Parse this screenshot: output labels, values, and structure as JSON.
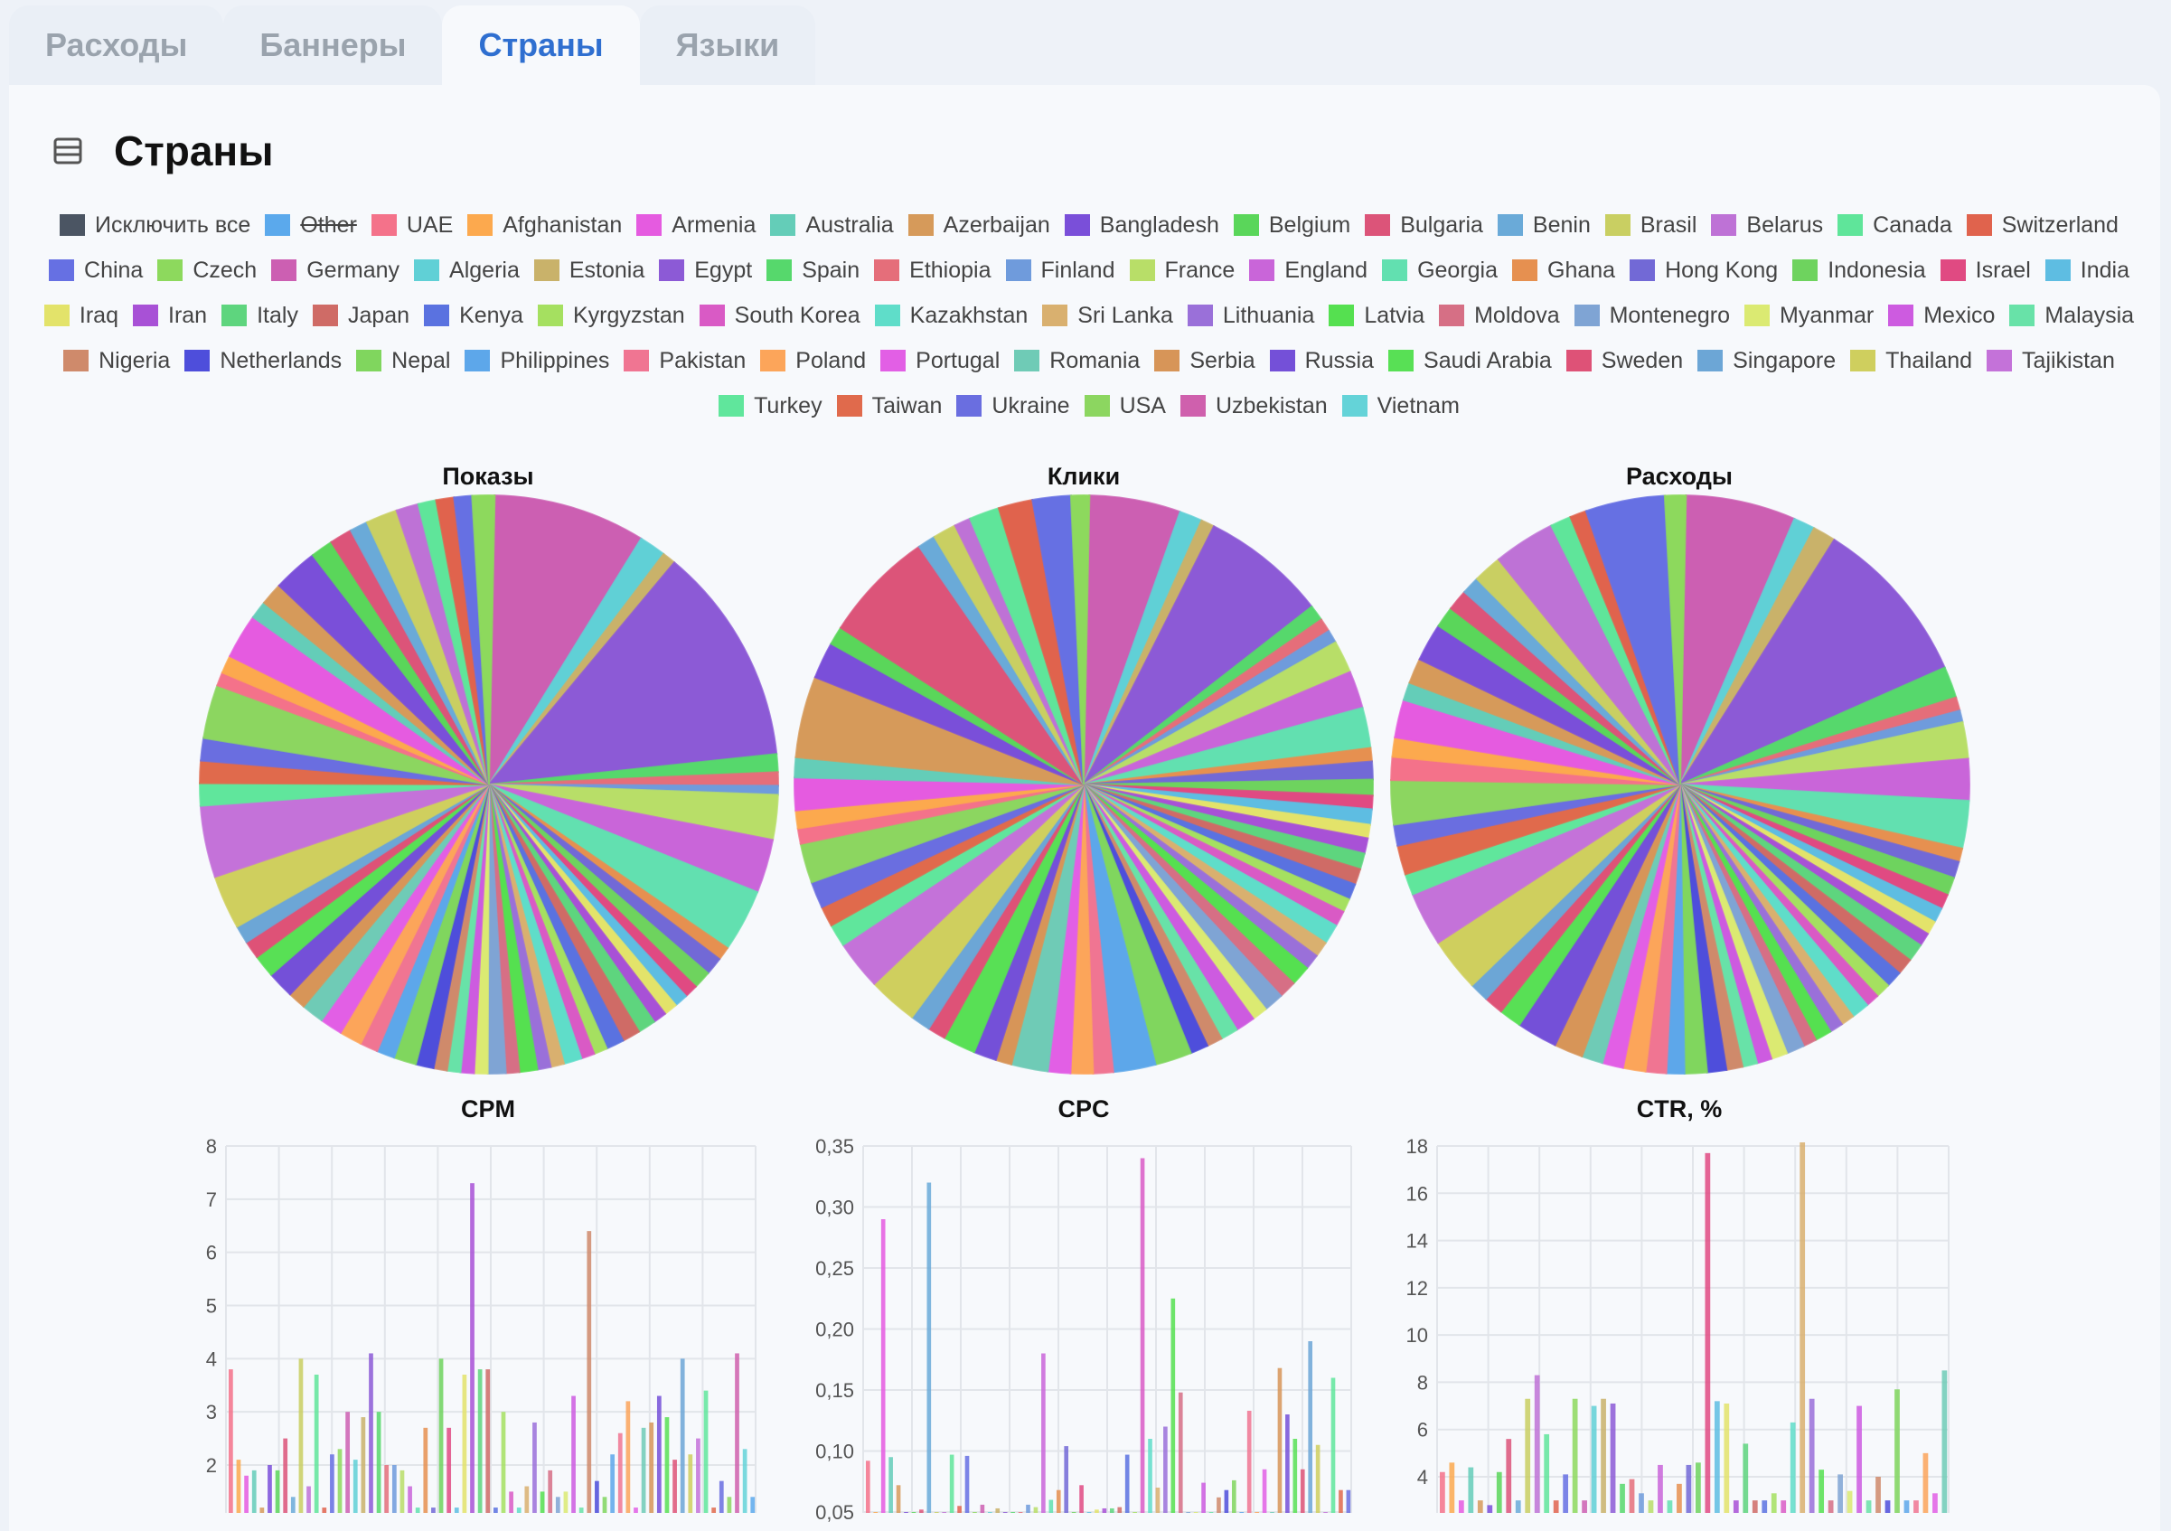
{
  "tabs": [
    {
      "label": "Расходы",
      "active": false
    },
    {
      "label": "Баннеры",
      "active": false
    },
    {
      "label": "Страны",
      "active": true
    },
    {
      "label": "Языки",
      "active": false
    }
  ],
  "page_title": "Страны",
  "icons": {
    "table": "table-list-icon"
  },
  "legend": {
    "exclude_all_label": "Исключить все",
    "exclude_all_color": "#4b5563",
    "items": [
      {
        "label": "Other",
        "color": "#5ba9ec",
        "hidden": true
      },
      {
        "label": "UAE",
        "color": "#f4728a"
      },
      {
        "label": "Afghanistan",
        "color": "#fca94e"
      },
      {
        "label": "Armenia",
        "color": "#e55be0"
      },
      {
        "label": "Australia",
        "color": "#64cdb8"
      },
      {
        "label": "Azerbaijan",
        "color": "#d69a5a"
      },
      {
        "label": "Bangladesh",
        "color": "#7a4fd9"
      },
      {
        "label": "Belgium",
        "color": "#5ad65a"
      },
      {
        "label": "Bulgaria",
        "color": "#dc5479"
      },
      {
        "label": "Benin",
        "color": "#6aaad8"
      },
      {
        "label": "Brasil",
        "color": "#c9cf62"
      },
      {
        "label": "Belarus",
        "color": "#be72d6"
      },
      {
        "label": "Canada",
        "color": "#5fe59a"
      },
      {
        "label": "Switzerland",
        "color": "#e0634d"
      },
      {
        "label": "China",
        "color": "#6670e3"
      },
      {
        "label": "Czech",
        "color": "#8dd95d"
      },
      {
        "label": "Germany",
        "color": "#cc5fb2"
      },
      {
        "label": "Algeria",
        "color": "#60d0d6"
      },
      {
        "label": "Estonia",
        "color": "#c9b26a"
      },
      {
        "label": "Egypt",
        "color": "#8c5ad6"
      },
      {
        "label": "Spain",
        "color": "#56d86c"
      },
      {
        "label": "Ethiopia",
        "color": "#e56e7a"
      },
      {
        "label": "Finland",
        "color": "#6f9bdc"
      },
      {
        "label": "France",
        "color": "#b8de68"
      },
      {
        "label": "England",
        "color": "#c965d9"
      },
      {
        "label": "Georgia",
        "color": "#62e0b0"
      },
      {
        "label": "Ghana",
        "color": "#e69050"
      },
      {
        "label": "Hong Kong",
        "color": "#7269d6"
      },
      {
        "label": "Indonesia",
        "color": "#6ed35e"
      },
      {
        "label": "Israel",
        "color": "#e04a82"
      },
      {
        "label": "India",
        "color": "#5ebde2"
      },
      {
        "label": "Iraq",
        "color": "#e3e36a"
      },
      {
        "label": "Iran",
        "color": "#a851d6"
      },
      {
        "label": "Italy",
        "color": "#5ed57e"
      },
      {
        "label": "Japan",
        "color": "#cf6b66"
      },
      {
        "label": "Kenya",
        "color": "#5a72e0"
      },
      {
        "label": "Kyrgyzstan",
        "color": "#a5e060"
      },
      {
        "label": "South Korea",
        "color": "#d95ac5"
      },
      {
        "label": "Kazakhstan",
        "color": "#5fddc9"
      },
      {
        "label": "Sri Lanka",
        "color": "#d9b06f"
      },
      {
        "label": "Lithuania",
        "color": "#9a70d9"
      },
      {
        "label": "Latvia",
        "color": "#55e050"
      },
      {
        "label": "Moldova",
        "color": "#d66f85"
      },
      {
        "label": "Montenegro",
        "color": "#7fa4d4"
      },
      {
        "label": "Myanmar",
        "color": "#dbea72"
      },
      {
        "label": "Mexico",
        "color": "#cd5be0"
      },
      {
        "label": "Malaysia",
        "color": "#68e2a8"
      },
      {
        "label": "Nigeria",
        "color": "#cf8a6b"
      },
      {
        "label": "Netherlands",
        "color": "#4e4edb"
      },
      {
        "label": "Nepal",
        "color": "#80d65e"
      },
      {
        "label": "Philippines",
        "color": "#5da7ea"
      },
      {
        "label": "Pakistan",
        "color": "#f07592"
      },
      {
        "label": "Poland",
        "color": "#fca55a"
      },
      {
        "label": "Portugal",
        "color": "#e25fe5"
      },
      {
        "label": "Romania",
        "color": "#6fcbb6"
      },
      {
        "label": "Serbia",
        "color": "#d79558"
      },
      {
        "label": "Russia",
        "color": "#7450d8"
      },
      {
        "label": "Saudi Arabia",
        "color": "#58e055"
      },
      {
        "label": "Sweden",
        "color": "#de5277"
      },
      {
        "label": "Singapore",
        "color": "#6ca6d6"
      },
      {
        "label": "Thailand",
        "color": "#cfcf5e"
      },
      {
        "label": "Tajikistan",
        "color": "#c472d9"
      },
      {
        "label": "Turkey",
        "color": "#60e69c"
      },
      {
        "label": "Taiwan",
        "color": "#e06a4c"
      },
      {
        "label": "Ukraine",
        "color": "#6a6ee0"
      },
      {
        "label": "USA",
        "color": "#8cd660"
      },
      {
        "label": "Uzbekistan",
        "color": "#cf60ad"
      },
      {
        "label": "Vietnam",
        "color": "#64d3d8"
      }
    ]
  },
  "chart_data": [
    {
      "type": "pie",
      "title": "Показы",
      "labels": [
        "Germany",
        "Algeria",
        "Estonia",
        "Egypt",
        "Spain",
        "Ethiopia",
        "Finland",
        "France",
        "England",
        "Georgia",
        "Ghana",
        "Hong Kong",
        "Indonesia",
        "Israel",
        "India",
        "Iraq",
        "Iran",
        "Italy",
        "Japan",
        "Kenya",
        "Kyrgyzstan",
        "South Korea",
        "Kazakhstan",
        "Sri Lanka",
        "Lithuania",
        "Latvia",
        "Moldova",
        "Montenegro",
        "Myanmar",
        "Mexico",
        "Malaysia",
        "Nigeria",
        "Netherlands",
        "Nepal",
        "Philippines",
        "Pakistan",
        "Poland",
        "Portugal",
        "Romania",
        "Serbia",
        "Russia",
        "Saudi Arabia",
        "Sweden",
        "Singapore",
        "Thailand",
        "Tajikistan",
        "Turkey",
        "Taiwan",
        "Ukraine",
        "USA",
        "UAE",
        "Afghanistan",
        "Armenia",
        "Australia",
        "Azerbaijan",
        "Bangladesh",
        "Belgium",
        "Bulgaria",
        "Benin",
        "Brasil",
        "Belarus",
        "Canada",
        "Switzerland",
        "China",
        "Czech"
      ],
      "values": [
        3.4,
        0.6,
        0.3,
        4.9,
        0.4,
        0.3,
        0.2,
        1.0,
        1.2,
        1.4,
        0.3,
        0.4,
        0.4,
        0.3,
        0.3,
        0.3,
        0.3,
        0.4,
        0.4,
        0.4,
        0.3,
        0.3,
        0.4,
        0.3,
        0.3,
        0.4,
        0.3,
        0.4,
        0.3,
        0.3,
        0.3,
        0.3,
        0.4,
        0.5,
        0.4,
        0.4,
        0.5,
        0.5,
        0.5,
        0.4,
        0.6,
        0.5,
        0.4,
        0.4,
        1.2,
        1.6,
        0.5,
        0.5,
        0.5,
        1.2,
        0.3,
        0.4,
        1.0,
        0.4,
        0.5,
        1.0,
        0.5,
        0.5,
        0.4,
        0.7,
        0.5,
        0.4,
        0.4,
        0.4,
        0.5
      ]
    },
    {
      "type": "pie",
      "title": "Клики",
      "labels": [],
      "values": []
    },
    {
      "type": "pie",
      "title": "Расходы",
      "labels": [],
      "values": []
    },
    {
      "type": "bar",
      "title": "CPM",
      "ylim": [
        0,
        8
      ],
      "yticks": [
        "8",
        "7",
        "6",
        "5",
        "4",
        "3",
        "2"
      ],
      "values": [
        3.8,
        2.1,
        1.8,
        1.9,
        1.2,
        2.0,
        1.9,
        2.5,
        1.4,
        4.0,
        1.6,
        3.7,
        1.2,
        2.2,
        2.3,
        3.0,
        2.1,
        2.9,
        4.1,
        3.0,
        2.0,
        2.0,
        1.9,
        1.6,
        1.2,
        2.7,
        1.2,
        4.0,
        2.7,
        1.2,
        3.7,
        7.3,
        3.8,
        3.8,
        1.2,
        3.0,
        1.5,
        1.2,
        1.6,
        2.8,
        1.5,
        1.9,
        1.4,
        1.5,
        3.3,
        1.2,
        6.4,
        1.7,
        1.4,
        2.2,
        2.6,
        3.2,
        1.2,
        2.7,
        2.8,
        3.3,
        2.9,
        2.1,
        4.0,
        2.2,
        2.5,
        3.4,
        1.2,
        1.7,
        1.4,
        4.1,
        2.3,
        1.4
      ]
    },
    {
      "type": "bar",
      "title": "CPC",
      "ylim": [
        0.05,
        0.35
      ],
      "yticks": [
        "0,35",
        "0,30",
        "0,25",
        "0,20",
        "0,15",
        "0,10",
        "0,05"
      ],
      "values": [
        0.092,
        0.05,
        0.29,
        0.095,
        0.072,
        0.05,
        0.05,
        0.052,
        0.32,
        0.05,
        0.05,
        0.097,
        0.055,
        0.096,
        0.05,
        0.056,
        0.05,
        0.053,
        0.05,
        0.05,
        0.05,
        0.056,
        0.054,
        0.18,
        0.06,
        0.068,
        0.104,
        0.05,
        0.072,
        0.05,
        0.052,
        0.053,
        0.053,
        0.054,
        0.097,
        0.05,
        0.34,
        0.11,
        0.07,
        0.12,
        0.225,
        0.148,
        0.05,
        0.05,
        0.074,
        0.05,
        0.062,
        0.068,
        0.076,
        0.05,
        0.133,
        0.05,
        0.085,
        0.05,
        0.168,
        0.13,
        0.11,
        0.085,
        0.19,
        0.105,
        0.05,
        0.16,
        0.068,
        0.068
      ]
    },
    {
      "type": "bar",
      "title": "CTR, %",
      "ylim": [
        3,
        18
      ],
      "yticks": [
        "18",
        "16",
        "14",
        "12",
        "10",
        "8",
        "6",
        "4"
      ],
      "values": [
        4.2,
        4.6,
        3.0,
        4.4,
        3.0,
        2.8,
        4.2,
        5.6,
        3.0,
        7.3,
        8.3,
        5.8,
        3.0,
        4.1,
        7.3,
        3.0,
        7.0,
        7.3,
        7.1,
        3.7,
        3.9,
        3.3,
        3.0,
        4.5,
        3.0,
        3.7,
        4.5,
        4.6,
        17.7,
        7.2,
        7.1,
        3.0,
        5.4,
        3.0,
        3.0,
        3.3,
        3.0,
        6.3,
        18.5,
        7.3,
        4.3,
        3.0,
        4.1,
        3.4,
        7.0,
        3.0,
        4.0,
        3.0,
        7.7,
        3.0,
        3.0,
        5.0,
        3.3,
        8.5
      ]
    }
  ]
}
